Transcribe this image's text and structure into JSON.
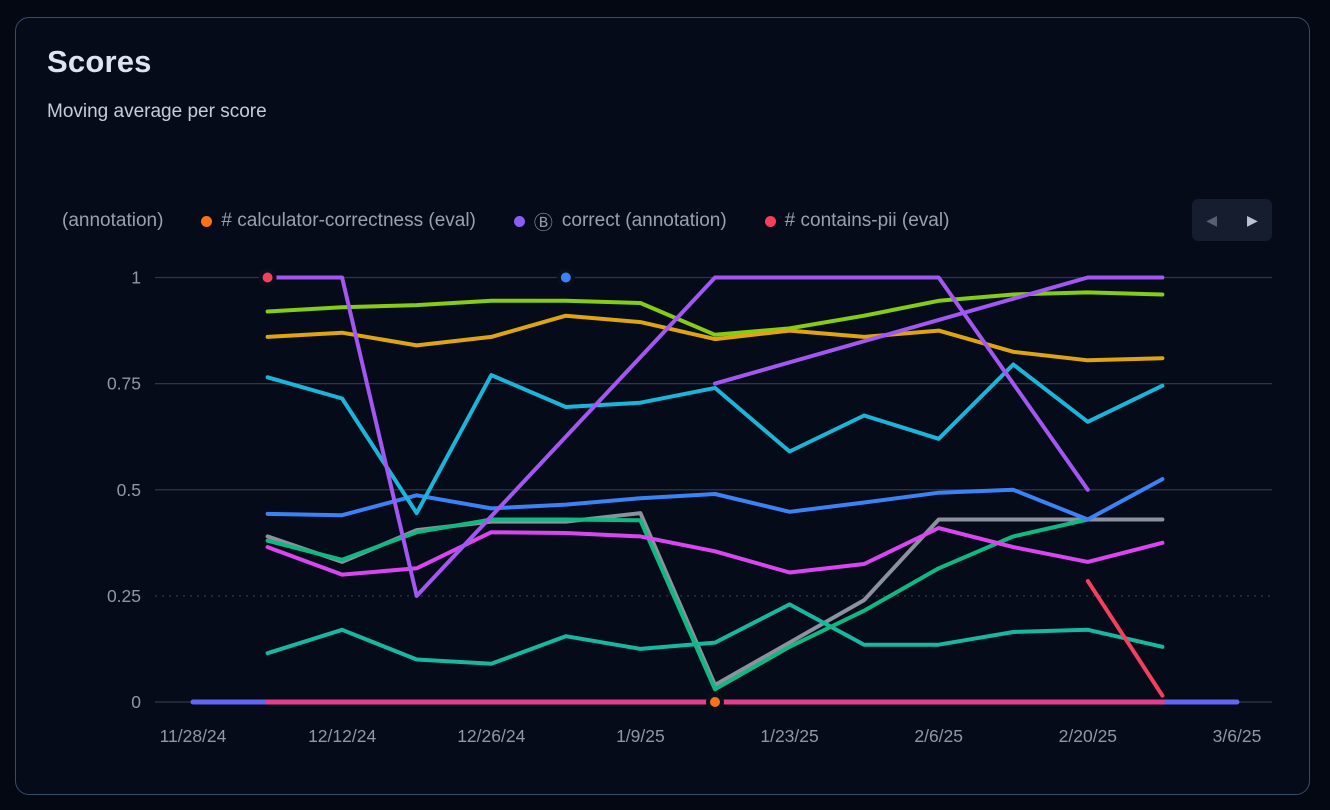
{
  "card": {
    "title": "Scores",
    "subtitle": "Moving average per score"
  },
  "legend": {
    "items": [
      {
        "label": "(annotation)",
        "dot_color": null,
        "glyph": null
      },
      {
        "label": "# calculator-correctness (eval)",
        "dot_color": "#f97316",
        "glyph": null
      },
      {
        "label": "correct (annotation)",
        "dot_color": "#8b5cf6",
        "glyph": "Ⓑ"
      },
      {
        "label": "# contains-pii (eval)",
        "dot_color": "#f43f5e",
        "glyph": null
      }
    ],
    "nav": {
      "prev_icon": "◀",
      "next_icon": "▶"
    }
  },
  "chart_data": {
    "type": "line",
    "title": "Scores",
    "subtitle": "Moving average per score",
    "x_axis": {
      "unit": "weeks starting 11/28/24, one data point per week",
      "tick_labels": [
        {
          "week": 0,
          "label": "11/28/24"
        },
        {
          "week": 2,
          "label": "12/12/24"
        },
        {
          "week": 4,
          "label": "12/26/24"
        },
        {
          "week": 6,
          "label": "1/9/25"
        },
        {
          "week": 8,
          "label": "1/23/25"
        },
        {
          "week": 10,
          "label": "2/6/25"
        },
        {
          "week": 12,
          "label": "2/20/25"
        },
        {
          "week": 14,
          "label": "3/6/25"
        }
      ]
    },
    "y_axis": {
      "range": [
        0,
        1
      ],
      "ticks": [
        {
          "value": 1,
          "label": "1",
          "dotted": false
        },
        {
          "value": 0.75,
          "label": "0.75",
          "dotted": false
        },
        {
          "value": 0.5,
          "label": "0.5",
          "dotted": false
        },
        {
          "value": 0.25,
          "label": "0.25",
          "dotted": true
        },
        {
          "value": 0,
          "label": "0",
          "dotted": false
        }
      ]
    },
    "grid_color": "#2e3749",
    "series": [
      {
        "id": "indigo-zero-line",
        "color": "#6366f1",
        "width": 5,
        "points": [
          [
            0,
            0
          ],
          [
            14,
            0
          ]
        ]
      },
      {
        "id": "pink-zero-line",
        "color": "#e0408f",
        "width": 5,
        "points": [
          [
            1,
            0
          ],
          [
            13,
            0
          ]
        ]
      },
      {
        "id": "gray-line",
        "color": "#8b919e",
        "width": 4,
        "points": [
          [
            1,
            0.39
          ],
          [
            2,
            0.33
          ],
          [
            3,
            0.405
          ],
          [
            4,
            0.425
          ],
          [
            5,
            0.425
          ],
          [
            6,
            0.445
          ],
          [
            7,
            0.04
          ],
          [
            8,
            0.14
          ],
          [
            9,
            0.24
          ],
          [
            10,
            0.43
          ],
          [
            11,
            0.43
          ],
          [
            12,
            0.43
          ],
          [
            13,
            0.43
          ]
        ]
      },
      {
        "id": "teal-line",
        "color": "#17b8a0",
        "width": 4,
        "points": [
          [
            1,
            0.115
          ],
          [
            2,
            0.17
          ],
          [
            3,
            0.1
          ],
          [
            4,
            0.09
          ],
          [
            5,
            0.155
          ],
          [
            6,
            0.125
          ],
          [
            7,
            0.14
          ],
          [
            8,
            0.23
          ],
          [
            9,
            0.135
          ],
          [
            10,
            0.135
          ],
          [
            11,
            0.165
          ],
          [
            12,
            0.17
          ],
          [
            13,
            0.13
          ]
        ]
      },
      {
        "id": "emerald-line",
        "color": "#10b981",
        "width": 4,
        "points": [
          [
            1,
            0.38
          ],
          [
            2,
            0.335
          ],
          [
            3,
            0.4
          ],
          [
            4,
            0.43
          ],
          [
            5,
            0.43
          ],
          [
            6,
            0.428
          ],
          [
            7,
            0.03
          ],
          [
            8,
            0.13
          ],
          [
            9,
            0.215
          ],
          [
            10,
            0.315
          ],
          [
            11,
            0.39
          ],
          [
            12,
            0.43
          ]
        ]
      },
      {
        "id": "magenta-line",
        "color": "#d946ef",
        "width": 4,
        "points": [
          [
            1,
            0.365
          ],
          [
            2,
            0.3
          ],
          [
            3,
            0.315
          ],
          [
            4,
            0.4
          ],
          [
            5,
            0.398
          ],
          [
            6,
            0.39
          ],
          [
            7,
            0.355
          ],
          [
            8,
            0.305
          ],
          [
            9,
            0.325
          ],
          [
            10,
            0.41
          ],
          [
            11,
            0.365
          ],
          [
            12,
            0.33
          ],
          [
            13,
            0.375
          ]
        ]
      },
      {
        "id": "blue-line",
        "color": "#3b82f6",
        "width": 4,
        "points": [
          [
            1,
            0.443
          ],
          [
            2,
            0.44
          ],
          [
            3,
            0.487
          ],
          [
            4,
            0.456
          ],
          [
            5,
            0.465
          ],
          [
            6,
            0.48
          ],
          [
            7,
            0.49
          ],
          [
            8,
            0.448
          ],
          [
            9,
            0.47
          ],
          [
            10,
            0.493
          ],
          [
            11,
            0.5
          ],
          [
            12,
            0.43
          ],
          [
            13,
            0.525
          ]
        ]
      },
      {
        "id": "cyan-line",
        "color": "#1ab5d9",
        "width": 4,
        "points": [
          [
            1,
            0.765
          ],
          [
            2,
            0.715
          ],
          [
            3,
            0.445
          ],
          [
            4,
            0.77
          ],
          [
            5,
            0.695
          ],
          [
            6,
            0.705
          ],
          [
            7,
            0.74
          ],
          [
            8,
            0.59
          ],
          [
            9,
            0.675
          ],
          [
            10,
            0.62
          ],
          [
            11,
            0.795
          ],
          [
            12,
            0.66
          ],
          [
            13,
            0.745
          ]
        ]
      },
      {
        "id": "green-line",
        "color": "#84cc16",
        "width": 4,
        "points": [
          [
            1,
            0.92
          ],
          [
            2,
            0.93
          ],
          [
            3,
            0.935
          ],
          [
            4,
            0.945
          ],
          [
            5,
            0.945
          ],
          [
            6,
            0.94
          ],
          [
            7,
            0.865
          ],
          [
            8,
            0.88
          ],
          [
            9,
            0.91
          ],
          [
            10,
            0.945
          ],
          [
            11,
            0.96
          ],
          [
            12,
            0.965
          ],
          [
            13,
            0.96
          ]
        ]
      },
      {
        "id": "amber-line",
        "color": "#dfa511",
        "width": 4,
        "points": [
          [
            1,
            0.86
          ],
          [
            2,
            0.87
          ],
          [
            3,
            0.84
          ],
          [
            4,
            0.86
          ],
          [
            5,
            0.91
          ],
          [
            6,
            0.895
          ],
          [
            7,
            0.855
          ],
          [
            8,
            0.875
          ],
          [
            9,
            0.86
          ],
          [
            10,
            0.875
          ],
          [
            11,
            0.825
          ],
          [
            12,
            0.805
          ],
          [
            13,
            0.81
          ]
        ]
      },
      {
        "id": "purple-line-a",
        "color": "#a257f0",
        "width": 4,
        "points": [
          [
            1,
            1
          ],
          [
            2,
            1
          ],
          [
            3,
            0.25
          ],
          [
            7,
            1
          ],
          [
            10,
            1
          ],
          [
            12,
            0.5
          ]
        ]
      },
      {
        "id": "purple-line-b",
        "color": "#a257f0",
        "width": 4,
        "points": [
          [
            7,
            0.75
          ],
          [
            12,
            1
          ],
          [
            13,
            1
          ]
        ]
      },
      {
        "id": "red-line",
        "color": "#f43f5e",
        "width": 4,
        "points": [
          [
            12,
            0.285
          ],
          [
            13,
            0.015
          ]
        ]
      }
    ],
    "markers": [
      {
        "id": "red-dot",
        "color": "#f43f5e",
        "week": 1,
        "value": 1
      },
      {
        "id": "blue-dot",
        "color": "#3b82f6",
        "week": 5,
        "value": 1
      },
      {
        "id": "orange-dot",
        "color": "#f97316",
        "week": 7,
        "value": 0
      }
    ]
  }
}
